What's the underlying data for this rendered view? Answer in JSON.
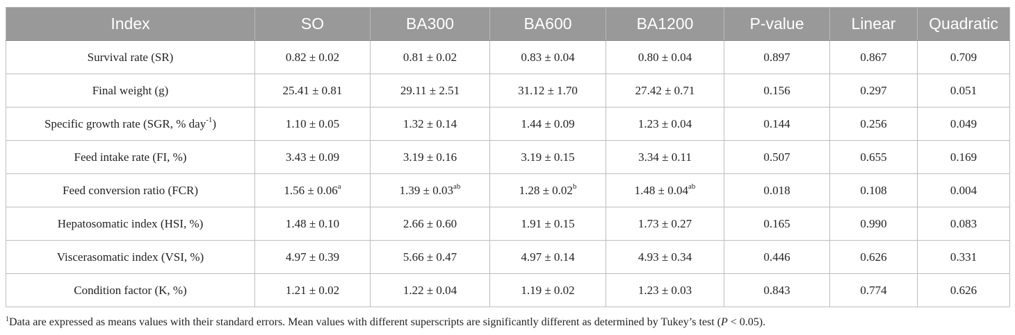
{
  "table": {
    "columns": [
      "Index",
      "SO",
      "BA300",
      "BA600",
      "BA1200",
      "P-value",
      "Linear",
      "Quadratic"
    ],
    "rows": [
      {
        "index": "Survival rate (SR)",
        "so": {
          "value": "0.82 ± 0.02",
          "sup": ""
        },
        "ba300": {
          "value": "0.81 ± 0.02",
          "sup": ""
        },
        "ba600": {
          "value": "0.83 ± 0.04",
          "sup": ""
        },
        "ba1200": {
          "value": "0.80 ± 0.04",
          "sup": ""
        },
        "p_value": "0.897",
        "linear": "0.867",
        "quadratic": "0.709"
      },
      {
        "index": "Final weight (g)",
        "so": {
          "value": "25.41 ± 0.81",
          "sup": ""
        },
        "ba300": {
          "value": "29.11 ± 2.51",
          "sup": ""
        },
        "ba600": {
          "value": "31.12 ± 1.70",
          "sup": ""
        },
        "ba1200": {
          "value": "27.42 ± 0.71",
          "sup": ""
        },
        "p_value": "0.156",
        "linear": "0.297",
        "quadratic": "0.051"
      },
      {
        "index_pre": "Specific growth rate (SGR, % day",
        "index_sup": "-1",
        "index_post": ")",
        "so": {
          "value": "1.10 ± 0.05",
          "sup": ""
        },
        "ba300": {
          "value": "1.32 ± 0.14",
          "sup": ""
        },
        "ba600": {
          "value": "1.44 ± 0.09",
          "sup": ""
        },
        "ba1200": {
          "value": "1.23 ± 0.04",
          "sup": ""
        },
        "p_value": "0.144",
        "linear": "0.256",
        "quadratic": "0.049"
      },
      {
        "index": "Feed intake rate (FI, %)",
        "so": {
          "value": "3.43 ± 0.09",
          "sup": ""
        },
        "ba300": {
          "value": "3.19 ± 0.16",
          "sup": ""
        },
        "ba600": {
          "value": "3.19 ± 0.15",
          "sup": ""
        },
        "ba1200": {
          "value": "3.34 ± 0.11",
          "sup": ""
        },
        "p_value": "0.507",
        "linear": "0.655",
        "quadratic": "0.169"
      },
      {
        "index": "Feed conversion ratio (FCR)",
        "so": {
          "value": "1.56 ± 0.06",
          "sup": "a"
        },
        "ba300": {
          "value": "1.39 ± 0.03",
          "sup": "ab"
        },
        "ba600": {
          "value": "1.28 ± 0.02",
          "sup": "b"
        },
        "ba1200": {
          "value": "1.48 ± 0.04",
          "sup": "ab"
        },
        "p_value": "0.018",
        "linear": "0.108",
        "quadratic": "0.004"
      },
      {
        "index": "Hepatosomatic index (HSI, %)",
        "so": {
          "value": "1.48 ± 0.10",
          "sup": ""
        },
        "ba300": {
          "value": "2.66 ± 0.60",
          "sup": ""
        },
        "ba600": {
          "value": "1.91 ± 0.15",
          "sup": ""
        },
        "ba1200": {
          "value": "1.73 ± 0.27",
          "sup": ""
        },
        "p_value": "0.165",
        "linear": "0.990",
        "quadratic": "0.083"
      },
      {
        "index": "Viscerasomatic index (VSI, %)",
        "so": {
          "value": "4.97 ± 0.39",
          "sup": ""
        },
        "ba300": {
          "value": "5.66 ± 0.47",
          "sup": ""
        },
        "ba600": {
          "value": "4.97 ± 0.14",
          "sup": ""
        },
        "ba1200": {
          "value": "4.93 ± 0.34",
          "sup": ""
        },
        "p_value": "0.446",
        "linear": "0.626",
        "quadratic": "0.331"
      },
      {
        "index": "Condition factor (K, %)",
        "so": {
          "value": "1.21 ± 0.02",
          "sup": ""
        },
        "ba300": {
          "value": "1.22 ± 0.04",
          "sup": ""
        },
        "ba600": {
          "value": "1.19 ± 0.02",
          "sup": ""
        },
        "ba1200": {
          "value": "1.23 ± 0.03",
          "sup": ""
        },
        "p_value": "0.843",
        "linear": "0.774",
        "quadratic": "0.626"
      }
    ]
  },
  "footnote": {
    "marker": "1",
    "text_before": "Data are expressed as means values with their standard errors. Mean values with different superscripts are significantly different as determined by Tukey’s test (",
    "italic": "P",
    "text_after": " < 0.05)."
  },
  "colors": {
    "header_bg": "#999999",
    "header_text": "#ffffff",
    "border": "#bdbdbd",
    "body_text": "#222222"
  }
}
